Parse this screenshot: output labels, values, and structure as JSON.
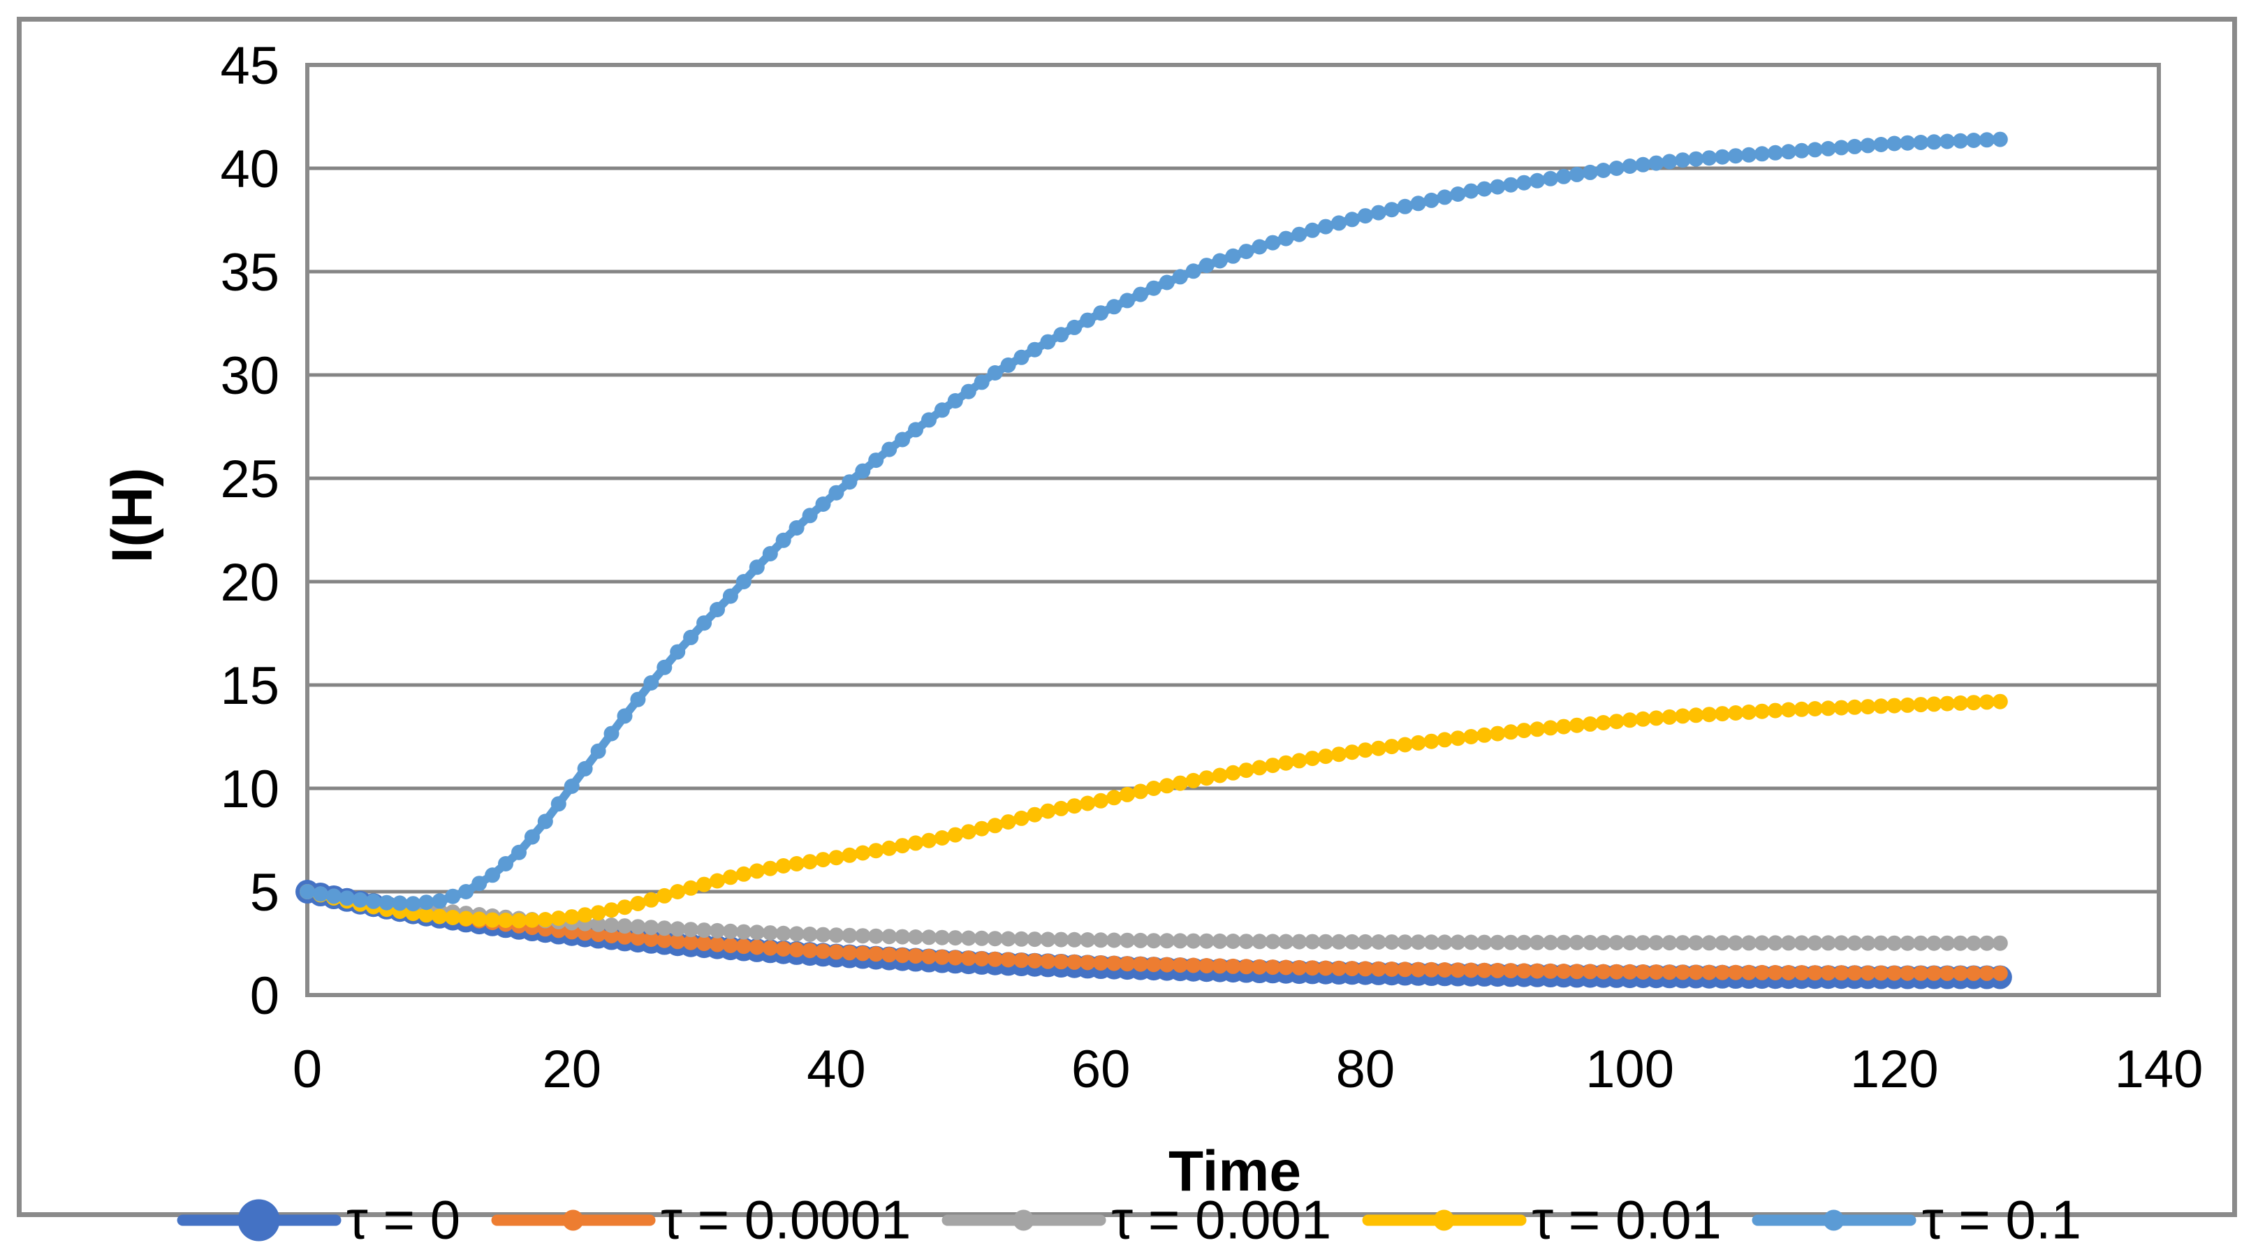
{
  "chart_data": {
    "type": "line",
    "title": "",
    "xlabel": "Time",
    "ylabel": "I(H)",
    "x_axis": {
      "min": 0,
      "max": 140,
      "tick_step": 20,
      "ticks": [
        0,
        20,
        40,
        60,
        80,
        100,
        120,
        140
      ],
      "tick_labels": [
        "0",
        "20",
        "40",
        "60",
        "80",
        "100",
        "120",
        "140"
      ]
    },
    "y_axis": {
      "min": 0,
      "max": 45,
      "tick_step": 5,
      "ticks": [
        0,
        5,
        10,
        15,
        20,
        25,
        30,
        35,
        40,
        45
      ],
      "tick_labels": [
        "0",
        "5",
        "10",
        "15",
        "20",
        "25",
        "30",
        "35",
        "40",
        "45"
      ]
    },
    "grid": "horizontal",
    "legend_position": "bottom",
    "colors": {
      "grid": "#848484",
      "border": "#8a8a8a",
      "text": "#000000"
    },
    "series": [
      {
        "name": "τ = 0",
        "color": "#4472C4",
        "marker": "large",
        "points": [
          [
            0,
            5.0
          ],
          [
            2,
            4.73
          ],
          [
            4,
            4.47
          ],
          [
            6,
            4.23
          ],
          [
            8,
            4.0
          ],
          [
            10,
            3.79
          ],
          [
            12,
            3.6
          ],
          [
            14,
            3.42
          ],
          [
            16,
            3.25
          ],
          [
            18,
            3.1
          ],
          [
            20,
            2.95
          ],
          [
            24,
            2.69
          ],
          [
            28,
            2.46
          ],
          [
            32,
            2.26
          ],
          [
            36,
            2.07
          ],
          [
            40,
            1.91
          ],
          [
            44,
            1.77
          ],
          [
            48,
            1.64
          ],
          [
            52,
            1.53
          ],
          [
            56,
            1.44
          ],
          [
            60,
            1.35
          ],
          [
            64,
            1.28
          ],
          [
            68,
            1.21
          ],
          [
            72,
            1.15
          ],
          [
            76,
            1.1
          ],
          [
            80,
            1.06
          ],
          [
            84,
            1.02
          ],
          [
            88,
            0.99
          ],
          [
            92,
            0.96
          ],
          [
            96,
            0.93
          ],
          [
            100,
            0.91
          ],
          [
            104,
            0.9
          ],
          [
            108,
            0.88
          ],
          [
            112,
            0.87
          ],
          [
            116,
            0.87
          ],
          [
            120,
            0.86
          ],
          [
            124,
            0.86
          ],
          [
            128,
            0.86
          ]
        ]
      },
      {
        "name": "τ = 0.0001",
        "color": "#ED7D31",
        "marker": "small",
        "points": [
          [
            0,
            5.0
          ],
          [
            2,
            4.74
          ],
          [
            4,
            4.5
          ],
          [
            6,
            4.27
          ],
          [
            8,
            4.06
          ],
          [
            10,
            3.86
          ],
          [
            12,
            3.68
          ],
          [
            14,
            3.51
          ],
          [
            16,
            3.35
          ],
          [
            18,
            3.2
          ],
          [
            20,
            3.06
          ],
          [
            24,
            2.81
          ],
          [
            28,
            2.59
          ],
          [
            32,
            2.4
          ],
          [
            36,
            2.23
          ],
          [
            40,
            2.08
          ],
          [
            44,
            1.95
          ],
          [
            48,
            1.83
          ],
          [
            52,
            1.73
          ],
          [
            56,
            1.63
          ],
          [
            60,
            1.55
          ],
          [
            64,
            1.48
          ],
          [
            68,
            1.42
          ],
          [
            72,
            1.36
          ],
          [
            76,
            1.31
          ],
          [
            80,
            1.27
          ],
          [
            84,
            1.23
          ],
          [
            88,
            1.2
          ],
          [
            92,
            1.17
          ],
          [
            96,
            1.14
          ],
          [
            100,
            1.12
          ],
          [
            104,
            1.1
          ],
          [
            108,
            1.09
          ],
          [
            112,
            1.08
          ],
          [
            116,
            1.07
          ],
          [
            120,
            1.06
          ],
          [
            124,
            1.05
          ],
          [
            128,
            1.05
          ]
        ]
      },
      {
        "name": "τ = 0.001",
        "color": "#A5A5A5",
        "marker": "small",
        "points": [
          [
            0,
            5.0
          ],
          [
            2,
            4.78
          ],
          [
            4,
            4.58
          ],
          [
            6,
            4.4
          ],
          [
            8,
            4.24
          ],
          [
            10,
            4.08
          ],
          [
            12,
            3.95
          ],
          [
            14,
            3.82
          ],
          [
            16,
            3.7
          ],
          [
            18,
            3.6
          ],
          [
            20,
            3.5
          ],
          [
            24,
            3.34
          ],
          [
            28,
            3.2
          ],
          [
            32,
            3.08
          ],
          [
            36,
            2.98
          ],
          [
            40,
            2.9
          ],
          [
            44,
            2.83
          ],
          [
            48,
            2.78
          ],
          [
            52,
            2.73
          ],
          [
            56,
            2.69
          ],
          [
            60,
            2.66
          ],
          [
            64,
            2.63
          ],
          [
            68,
            2.61
          ],
          [
            72,
            2.59
          ],
          [
            76,
            2.58
          ],
          [
            80,
            2.57
          ],
          [
            84,
            2.56
          ],
          [
            88,
            2.55
          ],
          [
            92,
            2.54
          ],
          [
            96,
            2.54
          ],
          [
            100,
            2.53
          ],
          [
            104,
            2.53
          ],
          [
            108,
            2.52
          ],
          [
            112,
            2.52
          ],
          [
            116,
            2.52
          ],
          [
            120,
            2.51
          ],
          [
            124,
            2.51
          ],
          [
            128,
            2.51
          ]
        ]
      },
      {
        "name": "τ = 0.01",
        "color": "#FFC000",
        "marker": "small",
        "points": [
          [
            0,
            5.0
          ],
          [
            2,
            4.7
          ],
          [
            4,
            4.4
          ],
          [
            6,
            4.15
          ],
          [
            8,
            3.95
          ],
          [
            10,
            3.8
          ],
          [
            12,
            3.7
          ],
          [
            14,
            3.63
          ],
          [
            16,
            3.6
          ],
          [
            18,
            3.65
          ],
          [
            20,
            3.78
          ],
          [
            22,
            3.98
          ],
          [
            24,
            4.25
          ],
          [
            26,
            4.6
          ],
          [
            28,
            5.0
          ],
          [
            30,
            5.35
          ],
          [
            32,
            5.7
          ],
          [
            34,
            6.0
          ],
          [
            36,
            6.25
          ],
          [
            38,
            6.45
          ],
          [
            40,
            6.65
          ],
          [
            44,
            7.1
          ],
          [
            48,
            7.6
          ],
          [
            52,
            8.2
          ],
          [
            56,
            8.9
          ],
          [
            60,
            9.4
          ],
          [
            64,
            10.0
          ],
          [
            68,
            10.5
          ],
          [
            72,
            11.0
          ],
          [
            76,
            11.45
          ],
          [
            80,
            11.85
          ],
          [
            84,
            12.2
          ],
          [
            88,
            12.5
          ],
          [
            92,
            12.8
          ],
          [
            96,
            13.05
          ],
          [
            100,
            13.3
          ],
          [
            104,
            13.5
          ],
          [
            108,
            13.65
          ],
          [
            112,
            13.8
          ],
          [
            116,
            13.9
          ],
          [
            120,
            14.0
          ],
          [
            124,
            14.1
          ],
          [
            128,
            14.2
          ]
        ]
      },
      {
        "name": "τ = 0.1",
        "color": "#5B9BD5",
        "marker": "small",
        "points": [
          [
            0,
            5.0
          ],
          [
            2,
            4.78
          ],
          [
            4,
            4.6
          ],
          [
            6,
            4.47
          ],
          [
            8,
            4.42
          ],
          [
            10,
            4.55
          ],
          [
            12,
            5.0
          ],
          [
            14,
            5.8
          ],
          [
            16,
            6.9
          ],
          [
            18,
            8.4
          ],
          [
            20,
            10.1
          ],
          [
            22,
            11.8
          ],
          [
            24,
            13.5
          ],
          [
            26,
            15.1
          ],
          [
            28,
            16.6
          ],
          [
            30,
            18.0
          ],
          [
            32,
            19.3
          ],
          [
            34,
            20.7
          ],
          [
            36,
            22.0
          ],
          [
            38,
            23.2
          ],
          [
            40,
            24.3
          ],
          [
            44,
            26.4
          ],
          [
            48,
            28.3
          ],
          [
            52,
            30.1
          ],
          [
            56,
            31.6
          ],
          [
            60,
            33.0
          ],
          [
            64,
            34.2
          ],
          [
            68,
            35.3
          ],
          [
            72,
            36.2
          ],
          [
            76,
            37.0
          ],
          [
            80,
            37.7
          ],
          [
            84,
            38.3
          ],
          [
            88,
            38.9
          ],
          [
            92,
            39.3
          ],
          [
            96,
            39.7
          ],
          [
            100,
            40.1
          ],
          [
            104,
            40.4
          ],
          [
            108,
            40.6
          ],
          [
            112,
            40.8
          ],
          [
            116,
            41.0
          ],
          [
            120,
            41.2
          ],
          [
            124,
            41.3
          ],
          [
            128,
            41.4
          ]
        ]
      }
    ]
  }
}
